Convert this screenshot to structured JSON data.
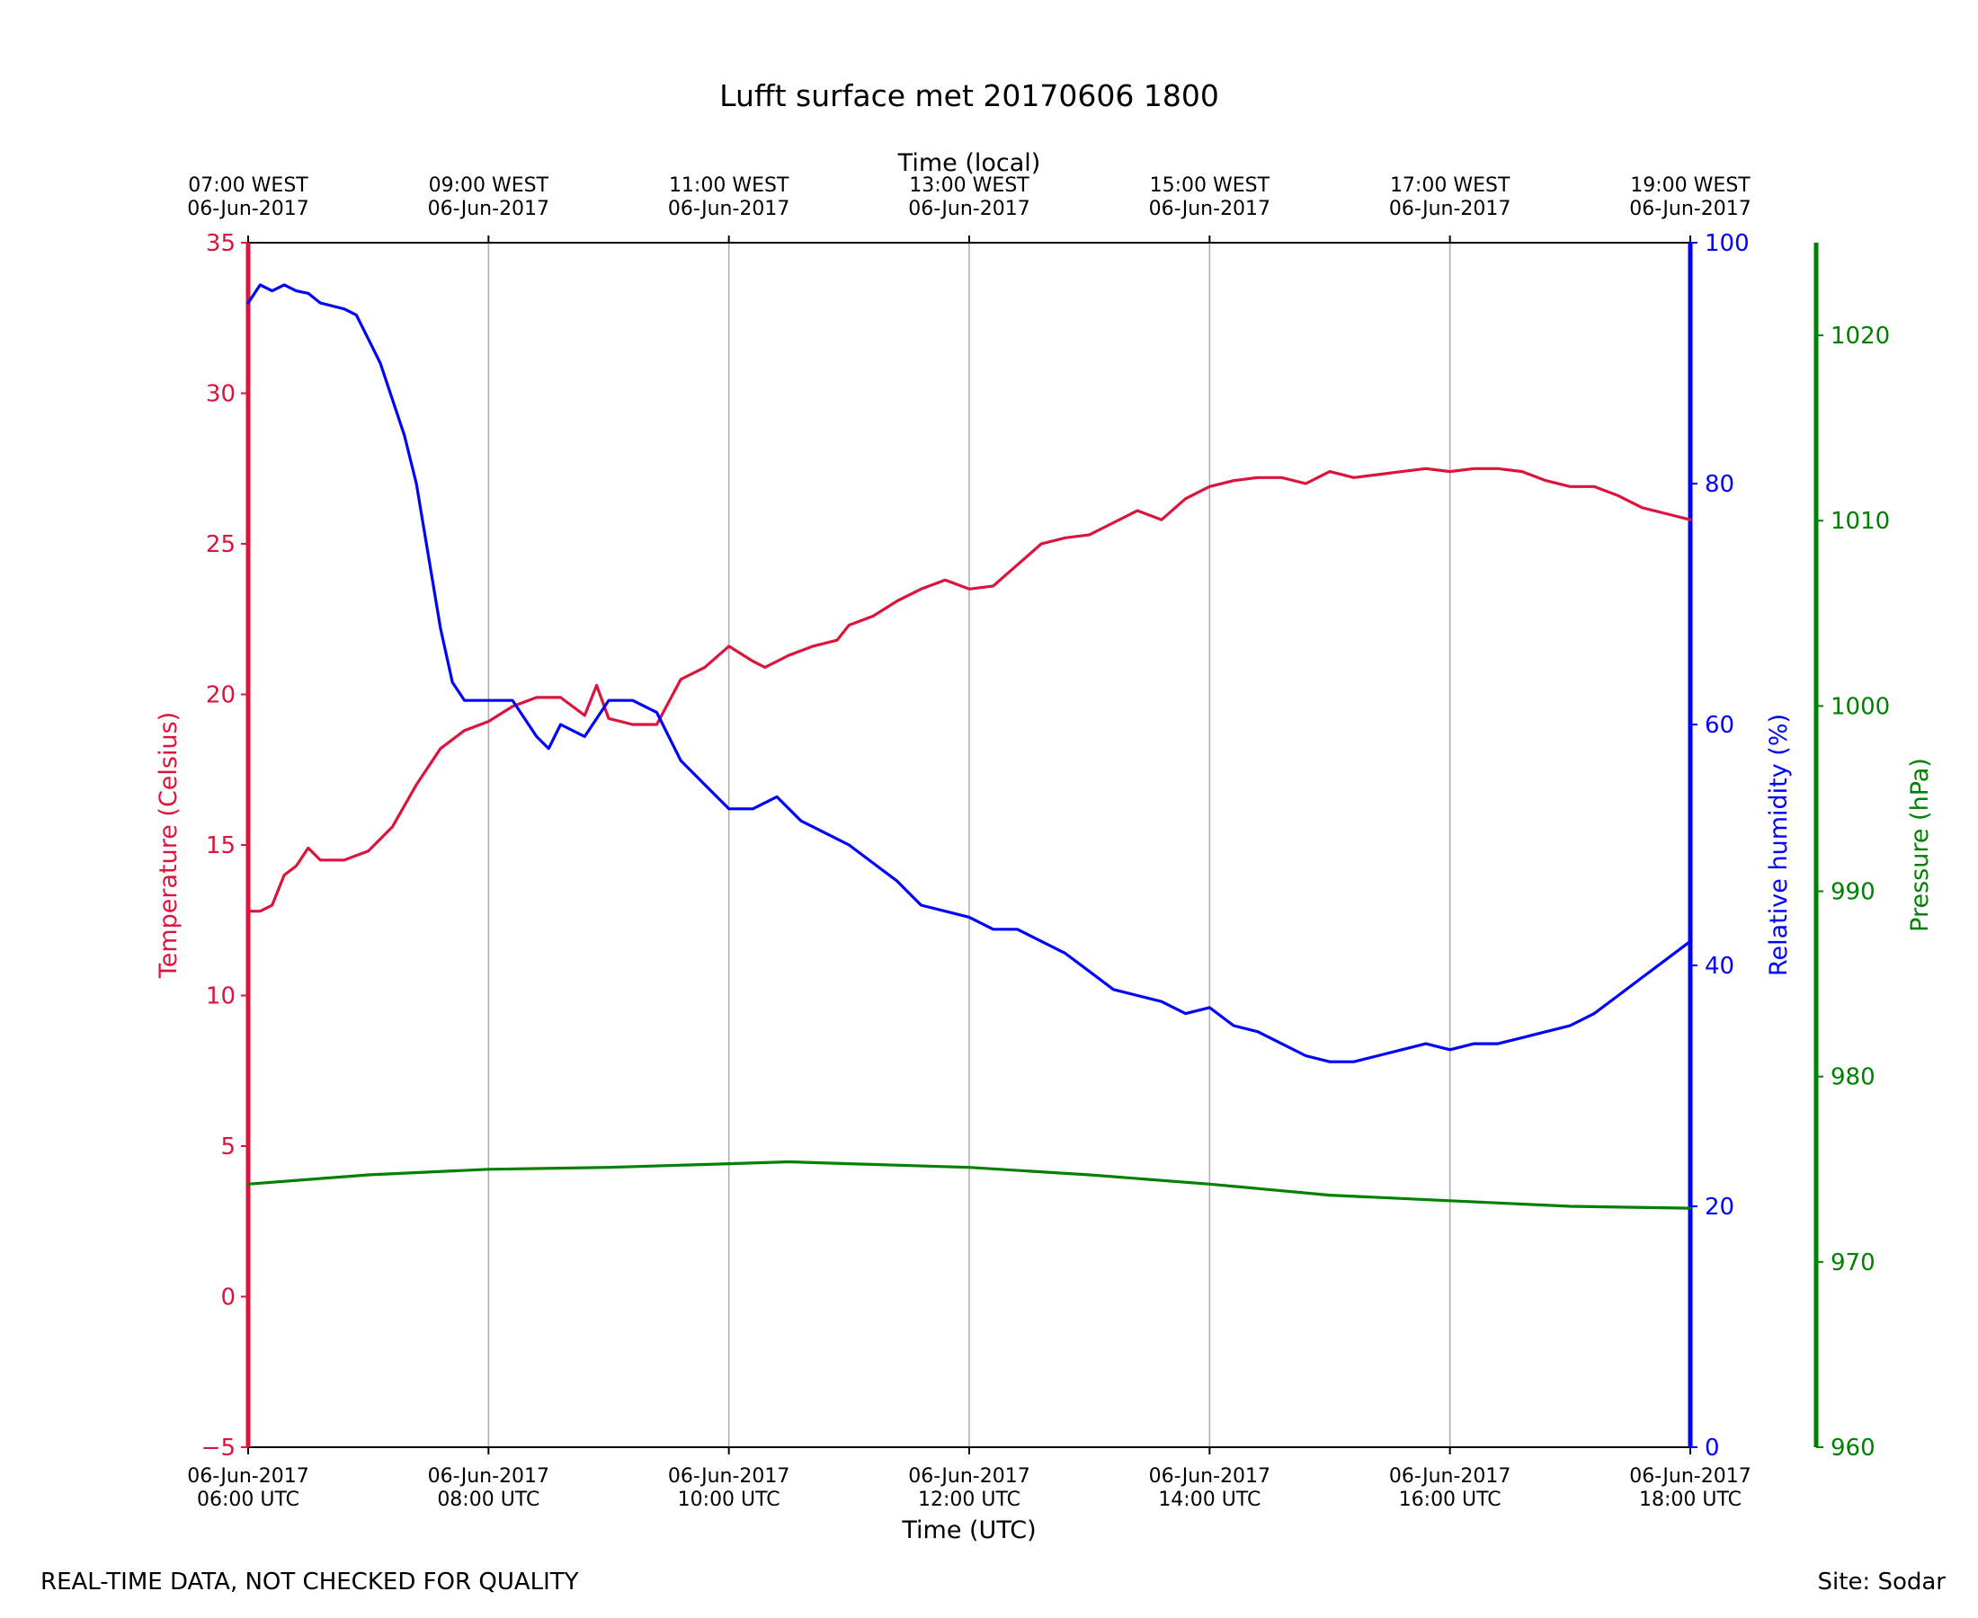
{
  "chart_data": {
    "type": "line",
    "title": "Lufft surface met 20170606 1800",
    "xlabel": "Time (UTC)",
    "x2label": "Time (local)",
    "xlim_hours_utc": [
      6,
      18
    ],
    "x_ticks_utc": [
      {
        "hour": 6,
        "line1": "06-Jun-2017",
        "line2": "06:00 UTC"
      },
      {
        "hour": 8,
        "line1": "06-Jun-2017",
        "line2": "08:00 UTC"
      },
      {
        "hour": 10,
        "line1": "06-Jun-2017",
        "line2": "10:00 UTC"
      },
      {
        "hour": 12,
        "line1": "06-Jun-2017",
        "line2": "12:00 UTC"
      },
      {
        "hour": 14,
        "line1": "06-Jun-2017",
        "line2": "14:00 UTC"
      },
      {
        "hour": 16,
        "line1": "06-Jun-2017",
        "line2": "16:00 UTC"
      },
      {
        "hour": 18,
        "line1": "06-Jun-2017",
        "line2": "18:00 UTC"
      }
    ],
    "x_ticks_local": [
      {
        "hour": 6,
        "line1": "07:00 WEST",
        "line2": "06-Jun-2017"
      },
      {
        "hour": 8,
        "line1": "09:00 WEST",
        "line2": "06-Jun-2017"
      },
      {
        "hour": 10,
        "line1": "11:00 WEST",
        "line2": "06-Jun-2017"
      },
      {
        "hour": 12,
        "line1": "13:00 WEST",
        "line2": "06-Jun-2017"
      },
      {
        "hour": 14,
        "line1": "15:00 WEST",
        "line2": "06-Jun-2017"
      },
      {
        "hour": 16,
        "line1": "17:00 WEST",
        "line2": "06-Jun-2017"
      },
      {
        "hour": 18,
        "line1": "19:00 WEST",
        "line2": "06-Jun-2017"
      }
    ],
    "grid": "vertical",
    "axes": {
      "temperature": {
        "label": "Temperature (Celsius)",
        "color": "#dc143c",
        "ylim": [
          -5,
          35
        ],
        "ticks": [
          "−5",
          "0",
          "5",
          "10",
          "15",
          "20",
          "25",
          "30",
          "35"
        ],
        "tick_values": [
          -5,
          0,
          5,
          10,
          15,
          20,
          25,
          30,
          35
        ],
        "side": "left"
      },
      "humidity": {
        "label": "Relative humidity (%)",
        "color": "#0000ff",
        "ylim": [
          0,
          100
        ],
        "ticks": [
          "0",
          "20",
          "40",
          "60",
          "80",
          "100"
        ],
        "tick_values": [
          0,
          20,
          40,
          60,
          80,
          100
        ],
        "side": "right"
      },
      "pressure": {
        "label": "Pressure (hPa)",
        "color": "#008000",
        "ylim": [
          960,
          1025
        ],
        "ticks": [
          "960",
          "970",
          "980",
          "990",
          "1000",
          "1010",
          "1020"
        ],
        "tick_values": [
          960,
          970,
          980,
          990,
          1000,
          1010,
          1020
        ],
        "side": "far-right"
      }
    },
    "series": [
      {
        "name": "Temperature",
        "axis": "temperature",
        "color": "#dc143c",
        "x": [
          6.0,
          6.1,
          6.2,
          6.3,
          6.4,
          6.5,
          6.6,
          6.8,
          7.0,
          7.2,
          7.4,
          7.6,
          7.8,
          8.0,
          8.2,
          8.4,
          8.6,
          8.8,
          8.9,
          9.0,
          9.2,
          9.4,
          9.6,
          9.8,
          10.0,
          10.2,
          10.3,
          10.5,
          10.7,
          10.9,
          11.0,
          11.2,
          11.4,
          11.6,
          11.8,
          12.0,
          12.2,
          12.4,
          12.6,
          12.8,
          13.0,
          13.2,
          13.4,
          13.6,
          13.8,
          14.0,
          14.2,
          14.4,
          14.6,
          14.8,
          15.0,
          15.2,
          15.4,
          15.6,
          15.8,
          16.0,
          16.2,
          16.4,
          16.6,
          16.8,
          17.0,
          17.2,
          17.4,
          17.6,
          17.8,
          18.0
        ],
        "y": [
          12.8,
          12.8,
          13.0,
          14.0,
          14.3,
          14.9,
          14.5,
          14.5,
          14.8,
          15.6,
          17.0,
          18.2,
          18.8,
          19.1,
          19.6,
          19.9,
          19.9,
          19.3,
          20.3,
          19.2,
          19.0,
          19.0,
          20.5,
          20.9,
          21.6,
          21.1,
          20.9,
          21.3,
          21.6,
          21.8,
          22.3,
          22.6,
          23.1,
          23.5,
          23.8,
          23.5,
          23.6,
          24.3,
          25.0,
          25.2,
          25.3,
          25.7,
          26.1,
          25.8,
          26.5,
          26.9,
          27.1,
          27.2,
          27.2,
          27.0,
          27.4,
          27.2,
          27.3,
          27.4,
          27.5,
          27.4,
          27.5,
          27.5,
          27.4,
          27.1,
          26.9,
          26.9,
          26.6,
          26.2,
          26.0,
          25.8
        ]
      },
      {
        "name": "Relative humidity",
        "axis": "humidity",
        "color": "#0000ff",
        "x": [
          6.0,
          6.1,
          6.2,
          6.3,
          6.4,
          6.5,
          6.6,
          6.8,
          6.9,
          7.0,
          7.1,
          7.2,
          7.3,
          7.4,
          7.5,
          7.6,
          7.7,
          7.8,
          8.0,
          8.2,
          8.4,
          8.5,
          8.6,
          8.8,
          9.0,
          9.2,
          9.4,
          9.6,
          9.8,
          10.0,
          10.2,
          10.4,
          10.6,
          10.8,
          11.0,
          11.2,
          11.4,
          11.6,
          11.8,
          12.0,
          12.2,
          12.4,
          12.6,
          12.8,
          13.0,
          13.2,
          13.4,
          13.6,
          13.8,
          14.0,
          14.2,
          14.4,
          14.6,
          14.8,
          15.0,
          15.2,
          15.4,
          15.6,
          15.8,
          16.0,
          16.2,
          16.4,
          16.6,
          16.8,
          17.0,
          17.2,
          17.4,
          17.6,
          17.8,
          18.0
        ],
        "y": [
          95.0,
          96.5,
          96.0,
          96.5,
          96.0,
          95.8,
          95.0,
          94.5,
          94.0,
          92.0,
          90.0,
          87.0,
          84.0,
          80.0,
          74.0,
          68.0,
          63.5,
          62.0,
          62.0,
          62.0,
          59.0,
          58.0,
          60.0,
          59.0,
          62.0,
          62.0,
          61.0,
          57.0,
          55.0,
          53.0,
          53.0,
          54.0,
          52.0,
          51.0,
          50.0,
          48.5,
          47.0,
          45.0,
          44.5,
          44.0,
          43.0,
          43.0,
          42.0,
          41.0,
          39.5,
          38.0,
          37.5,
          37.0,
          36.0,
          36.5,
          35.0,
          34.5,
          33.5,
          32.5,
          32.0,
          32.0,
          32.5,
          33.0,
          33.5,
          33.0,
          33.5,
          33.5,
          34.0,
          34.5,
          35.0,
          36.0,
          37.5,
          39.0,
          40.5,
          42.0
        ]
      },
      {
        "name": "Pressure",
        "axis": "pressure",
        "color": "#008000",
        "x": [
          6.0,
          7.0,
          8.0,
          9.0,
          10.0,
          10.5,
          11.0,
          12.0,
          13.0,
          14.0,
          15.0,
          16.0,
          17.0,
          18.0
        ],
        "y": [
          974.2,
          974.7,
          975.0,
          975.1,
          975.3,
          975.4,
          975.3,
          975.1,
          974.7,
          974.2,
          973.6,
          973.3,
          973.0,
          972.9
        ]
      }
    ]
  },
  "footer": {
    "left": "REAL-TIME DATA, NOT CHECKED FOR QUALITY",
    "right": "Site: Sodar"
  }
}
